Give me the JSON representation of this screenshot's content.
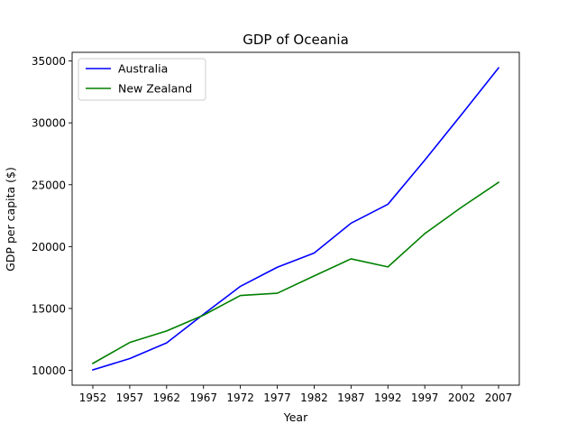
{
  "chart_data": {
    "type": "line",
    "title": "GDP of Oceania",
    "xlabel": "Year",
    "ylabel": "GDP per capita ($)",
    "x": [
      "1952",
      "1957",
      "1962",
      "1967",
      "1972",
      "1977",
      "1982",
      "1987",
      "1992",
      "1997",
      "2002",
      "2007"
    ],
    "series": [
      {
        "name": "Australia",
        "color": "#0000ff",
        "values": [
          10040,
          10950,
          12220,
          14530,
          16790,
          18330,
          19480,
          21890,
          23420,
          26990,
          30690,
          34440
        ]
      },
      {
        "name": "New Zealand",
        "color": "#008000",
        "values": [
          10560,
          12250,
          13180,
          14460,
          16050,
          16230,
          17630,
          19010,
          18360,
          21050,
          23190,
          25190
        ]
      }
    ],
    "ylim": [
      8800,
      35700
    ],
    "yticks": [
      "10000",
      "15000",
      "20000",
      "25000",
      "30000",
      "35000"
    ],
    "legend": {
      "placement": "top-left"
    },
    "grid": false
  }
}
